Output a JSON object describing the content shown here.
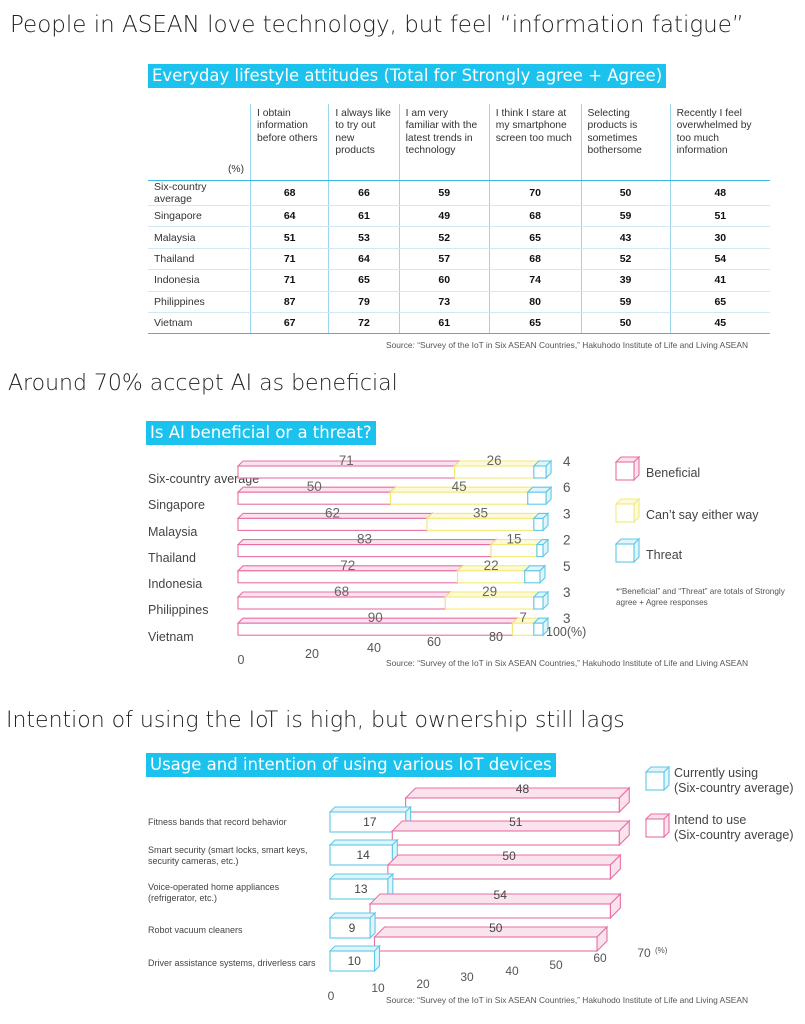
{
  "headlines": {
    "h1": "People in ASEAN love technology, but feel “information fatigue”",
    "h2": "Around 70% accept AI as beneficial",
    "h3": "Intention of using the IoT is high, but ownership still lags"
  },
  "colors": {
    "accent": "#1cc2ee",
    "beneficial": "#e86fa4",
    "neutral": "#f2ea78",
    "threat": "#5ec8e8"
  },
  "source": "Source: “Survey of the IoT in Six ASEAN Countries,” Hakuhodo Institute of Life and Living ASEAN",
  "chart_data": [
    {
      "type": "table",
      "title": "Everyday lifestyle attitudes (Total for Strongly agree + Agree)",
      "unit_label": "(%)",
      "columns": [
        "I obtain information before others",
        "I always like to try out new products",
        "I am very familiar with the latest trends in technology",
        "I think I stare at my smartphone screen too much",
        "Selecting products is sometimes bothersome",
        "Recently I feel overwhelmed by too much information"
      ],
      "rows": [
        {
          "label": "Six-country average",
          "values": [
            "68",
            "66",
            "59",
            "70",
            "50",
            "48"
          ]
        },
        {
          "label": "Singapore",
          "values": [
            "64",
            "61",
            "49",
            "68",
            "59",
            "51"
          ]
        },
        {
          "label": "Malaysia",
          "values": [
            "51",
            "53",
            "52",
            "65",
            "43",
            "30"
          ]
        },
        {
          "label": "Thailand",
          "values": [
            "71",
            "64",
            "57",
            "68",
            "52",
            "54"
          ]
        },
        {
          "label": "Indonesia",
          "values": [
            "71",
            "65",
            "60",
            "74",
            "39",
            "41"
          ]
        },
        {
          "label": "Philippines",
          "values": [
            "87",
            "79",
            "73",
            "80",
            "59",
            "65"
          ]
        },
        {
          "label": "Vietnam",
          "values": [
            "67",
            "72",
            "61",
            "65",
            "50",
            "45"
          ]
        }
      ]
    },
    {
      "type": "bar",
      "orientation": "horizontal-stacked",
      "title": "Is AI beneficial or a threat?",
      "categories": [
        "Six-country average",
        "Singapore",
        "Malaysia",
        "Thailand",
        "Indonesia",
        "Philippines",
        "Vietnam"
      ],
      "series": [
        {
          "name": "Beneficial",
          "values": [
            71,
            50,
            62,
            83,
            72,
            68,
            90
          ]
        },
        {
          "name": "Can’t say either way",
          "values": [
            26,
            45,
            35,
            15,
            22,
            29,
            7
          ]
        },
        {
          "name": "Threat",
          "values": [
            4,
            6,
            3,
            2,
            5,
            3,
            3
          ]
        }
      ],
      "xlim": [
        0,
        100
      ],
      "x_ticks": [
        "0",
        "20",
        "40",
        "60",
        "80",
        "100(%)"
      ],
      "note": "*“Beneficial” and “Threat” are totals of Strongly agree + Agree responses"
    },
    {
      "type": "bar",
      "orientation": "horizontal",
      "title": "Usage and intention of using various IoT devices",
      "categories": [
        "Fitness bands that record behavior",
        "Smart security (smart locks, smart keys, security cameras, etc.)",
        "Voice-operated home appliances (refrigerator, etc.)",
        "Robot vacuum cleaners",
        "Driver assistance systems, driverless cars"
      ],
      "series": [
        {
          "name": "Currently using (Six-country average)",
          "values": [
            17,
            14,
            13,
            9,
            10
          ]
        },
        {
          "name": "Intend to use (Six-country average)",
          "values": [
            48,
            51,
            50,
            54,
            50
          ]
        }
      ],
      "xlim": [
        0,
        70
      ],
      "x_ticks": [
        "0",
        "10",
        "20",
        "30",
        "40",
        "50",
        "60",
        "70"
      ],
      "unit": "(%)",
      "legend": [
        "Currently using",
        "(Six-country average)",
        "Intend to use",
        "(Six-country average)"
      ]
    }
  ]
}
